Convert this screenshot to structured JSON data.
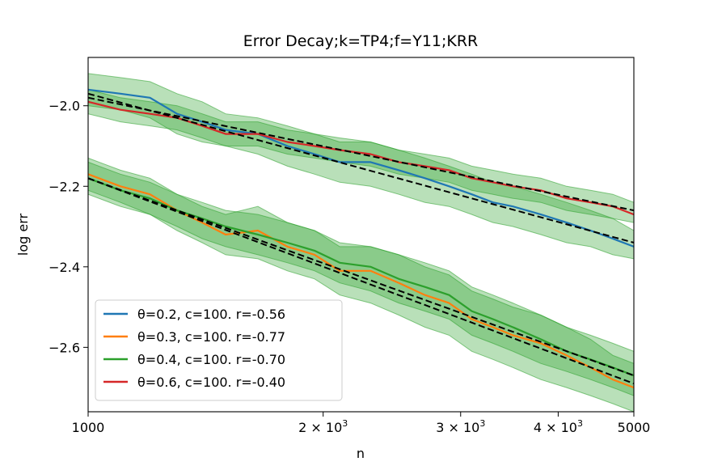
{
  "chart_data": {
    "type": "line",
    "title": "Error Decay;k=TP4;f=Y11;KRR",
    "xlabel": "n",
    "ylabel": "log err",
    "xscale": "log",
    "xlim": [
      1000,
      5000
    ],
    "ylim": [
      -2.76,
      -1.88
    ],
    "xticks": [
      {
        "value": 1000,
        "label": "1000"
      },
      {
        "value": 2000,
        "label": "2 × 10",
        "sup": "3"
      },
      {
        "value": 3000,
        "label": "3 × 10",
        "sup": "3"
      },
      {
        "value": 4000,
        "label": "4 × 10",
        "sup": "3"
      },
      {
        "value": 5000,
        "label": "5000"
      }
    ],
    "yticks": [
      {
        "value": -2.0,
        "label": "−2.0"
      },
      {
        "value": -2.2,
        "label": "−2.2"
      },
      {
        "value": -2.4,
        "label": "−2.4"
      },
      {
        "value": -2.6,
        "label": "−2.6"
      }
    ],
    "legend_position": "lower-left",
    "band_color": "#2ca02c",
    "fit_color": "#000000",
    "series": [
      {
        "name": "θ=0.2, c=100. r=-0.56",
        "color": "#1f77b4",
        "x": [
          1000,
          1100,
          1200,
          1300,
          1400,
          1500,
          1650,
          1800,
          1950,
          2100,
          2300,
          2500,
          2700,
          2900,
          3100,
          3300,
          3500,
          3800,
          4100,
          4400,
          4700,
          5000
        ],
        "y": [
          -1.96,
          -1.97,
          -1.98,
          -2.02,
          -2.04,
          -2.06,
          -2.07,
          -2.1,
          -2.12,
          -2.14,
          -2.14,
          -2.16,
          -2.18,
          -2.2,
          -2.22,
          -2.24,
          -2.25,
          -2.27,
          -2.29,
          -2.31,
          -2.33,
          -2.35
        ],
        "band_lower": [
          -2.0,
          -2.01,
          -2.03,
          -2.07,
          -2.09,
          -2.1,
          -2.12,
          -2.15,
          -2.17,
          -2.19,
          -2.2,
          -2.22,
          -2.24,
          -2.25,
          -2.27,
          -2.29,
          -2.3,
          -2.32,
          -2.34,
          -2.35,
          -2.37,
          -2.38
        ],
        "band_upper": [
          -1.92,
          -1.93,
          -1.94,
          -1.97,
          -1.99,
          -2.02,
          -2.03,
          -2.05,
          -2.07,
          -2.09,
          -2.09,
          -2.11,
          -2.13,
          -2.15,
          -2.17,
          -2.19,
          -2.2,
          -2.22,
          -2.24,
          -2.26,
          -2.28,
          -2.31
        ],
        "fit": [
          -1.97,
          -2.34
        ]
      },
      {
        "name": "θ=0.3, c=100. r=-0.77",
        "color": "#ff7f0e",
        "x": [
          1000,
          1100,
          1200,
          1300,
          1400,
          1500,
          1650,
          1800,
          1950,
          2100,
          2300,
          2500,
          2700,
          2900,
          3100,
          3300,
          3500,
          3800,
          4100,
          4400,
          4700,
          5000
        ],
        "y": [
          -2.17,
          -2.2,
          -2.22,
          -2.26,
          -2.29,
          -2.32,
          -2.31,
          -2.35,
          -2.37,
          -2.41,
          -2.41,
          -2.44,
          -2.47,
          -2.49,
          -2.53,
          -2.55,
          -2.57,
          -2.59,
          -2.62,
          -2.65,
          -2.68,
          -2.7
        ],
        "band_lower": [
          -2.21,
          -2.24,
          -2.27,
          -2.31,
          -2.34,
          -2.37,
          -2.38,
          -2.41,
          -2.43,
          -2.47,
          -2.49,
          -2.52,
          -2.55,
          -2.57,
          -2.61,
          -2.63,
          -2.65,
          -2.68,
          -2.7,
          -2.72,
          -2.74,
          -2.76
        ],
        "band_upper": [
          -2.13,
          -2.16,
          -2.18,
          -2.22,
          -2.25,
          -2.27,
          -2.25,
          -2.29,
          -2.31,
          -2.35,
          -2.35,
          -2.37,
          -2.4,
          -2.42,
          -2.46,
          -2.48,
          -2.5,
          -2.52,
          -2.55,
          -2.58,
          -2.62,
          -2.64
        ],
        "fit": [
          -2.18,
          -2.69
        ]
      },
      {
        "name": "θ=0.4, c=100. r=-0.70",
        "color": "#2ca02c",
        "x": [
          1000,
          1100,
          1200,
          1300,
          1400,
          1500,
          1650,
          1800,
          1950,
          2100,
          2300,
          2500,
          2700,
          2900,
          3100,
          3300,
          3500,
          3800,
          4100,
          4400,
          4700,
          5000
        ],
        "y": [
          -2.18,
          -2.21,
          -2.23,
          -2.26,
          -2.28,
          -2.3,
          -2.32,
          -2.34,
          -2.36,
          -2.39,
          -2.4,
          -2.43,
          -2.45,
          -2.47,
          -2.51,
          -2.53,
          -2.55,
          -2.58,
          -2.61,
          -2.63,
          -2.65,
          -2.67
        ],
        "band_lower": [
          -2.22,
          -2.25,
          -2.27,
          -2.3,
          -2.33,
          -2.35,
          -2.37,
          -2.39,
          -2.41,
          -2.44,
          -2.46,
          -2.49,
          -2.51,
          -2.53,
          -2.57,
          -2.59,
          -2.61,
          -2.64,
          -2.66,
          -2.68,
          -2.7,
          -2.72
        ],
        "band_upper": [
          -2.14,
          -2.17,
          -2.19,
          -2.22,
          -2.24,
          -2.26,
          -2.27,
          -2.29,
          -2.31,
          -2.34,
          -2.35,
          -2.37,
          -2.39,
          -2.41,
          -2.45,
          -2.47,
          -2.49,
          -2.52,
          -2.55,
          -2.57,
          -2.59,
          -2.61
        ],
        "fit": [
          -2.18,
          -2.67
        ]
      },
      {
        "name": "θ=0.6, c=100. r=-0.40",
        "color": "#d62728",
        "x": [
          1000,
          1100,
          1200,
          1300,
          1400,
          1500,
          1650,
          1800,
          1950,
          2100,
          2300,
          2500,
          2700,
          2900,
          3100,
          3300,
          3500,
          3800,
          4100,
          4400,
          4700,
          5000
        ],
        "y": [
          -1.99,
          -2.01,
          -2.02,
          -2.03,
          -2.05,
          -2.07,
          -2.07,
          -2.09,
          -2.1,
          -2.11,
          -2.12,
          -2.14,
          -2.15,
          -2.16,
          -2.18,
          -2.19,
          -2.2,
          -2.21,
          -2.23,
          -2.24,
          -2.25,
          -2.27
        ],
        "band_lower": [
          -2.02,
          -2.04,
          -2.05,
          -2.06,
          -2.08,
          -2.1,
          -2.1,
          -2.12,
          -2.13,
          -2.14,
          -2.15,
          -2.17,
          -2.18,
          -2.19,
          -2.21,
          -2.22,
          -2.23,
          -2.24,
          -2.26,
          -2.27,
          -2.28,
          -2.29
        ],
        "band_upper": [
          -1.96,
          -1.98,
          -1.99,
          -2.0,
          -2.02,
          -2.04,
          -2.04,
          -2.06,
          -2.07,
          -2.08,
          -2.09,
          -2.11,
          -2.12,
          -2.13,
          -2.15,
          -2.16,
          -2.17,
          -2.18,
          -2.2,
          -2.21,
          -2.22,
          -2.24
        ],
        "fit": [
          -1.98,
          -2.26
        ]
      }
    ]
  }
}
